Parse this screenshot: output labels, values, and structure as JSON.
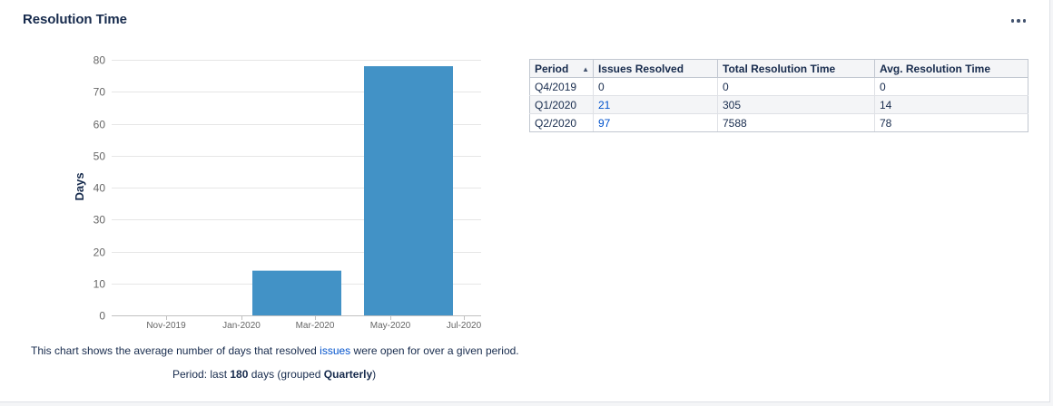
{
  "gadget": {
    "title": "Resolution Time",
    "menu_icon": "more-horizontal-icon"
  },
  "chart_data": {
    "type": "bar",
    "ylabel": "Days",
    "xlabel": "",
    "ylim": [
      0,
      80
    ],
    "yticks": [
      0,
      10,
      20,
      30,
      40,
      50,
      60,
      70,
      80
    ],
    "xticks": [
      "Nov-2019",
      "Jan-2020",
      "Mar-2020",
      "May-2020",
      "Jul-2020"
    ],
    "categories": [
      "Q4/2019",
      "Q1/2020",
      "Q2/2020"
    ],
    "values": [
      0,
      14,
      78
    ],
    "bar_color": "#4292c6",
    "grid": true
  },
  "caption": {
    "before": "This chart shows the average number of days that resolved ",
    "link": "issues",
    "after": " were open for over a given period."
  },
  "period": {
    "prefix": "Period: last ",
    "days": "180",
    "middle": " days (grouped ",
    "grouping": "Quarterly",
    "suffix": ")"
  },
  "table": {
    "headers": [
      "Period",
      "Issues Resolved",
      "Total Resolution Time",
      "Avg. Resolution Time"
    ],
    "sort_icon": "sort-asc-icon",
    "rows": [
      {
        "period": "Q4/2019",
        "issues": "0",
        "issues_link": false,
        "total": "0",
        "avg": "0"
      },
      {
        "period": "Q1/2020",
        "issues": "21",
        "issues_link": true,
        "total": "305",
        "avg": "14"
      },
      {
        "period": "Q2/2020",
        "issues": "97",
        "issues_link": true,
        "total": "7588",
        "avg": "78"
      }
    ]
  },
  "colors": {
    "link": "#0052cc",
    "bar": "#4292c6",
    "title": "#172b4d"
  }
}
